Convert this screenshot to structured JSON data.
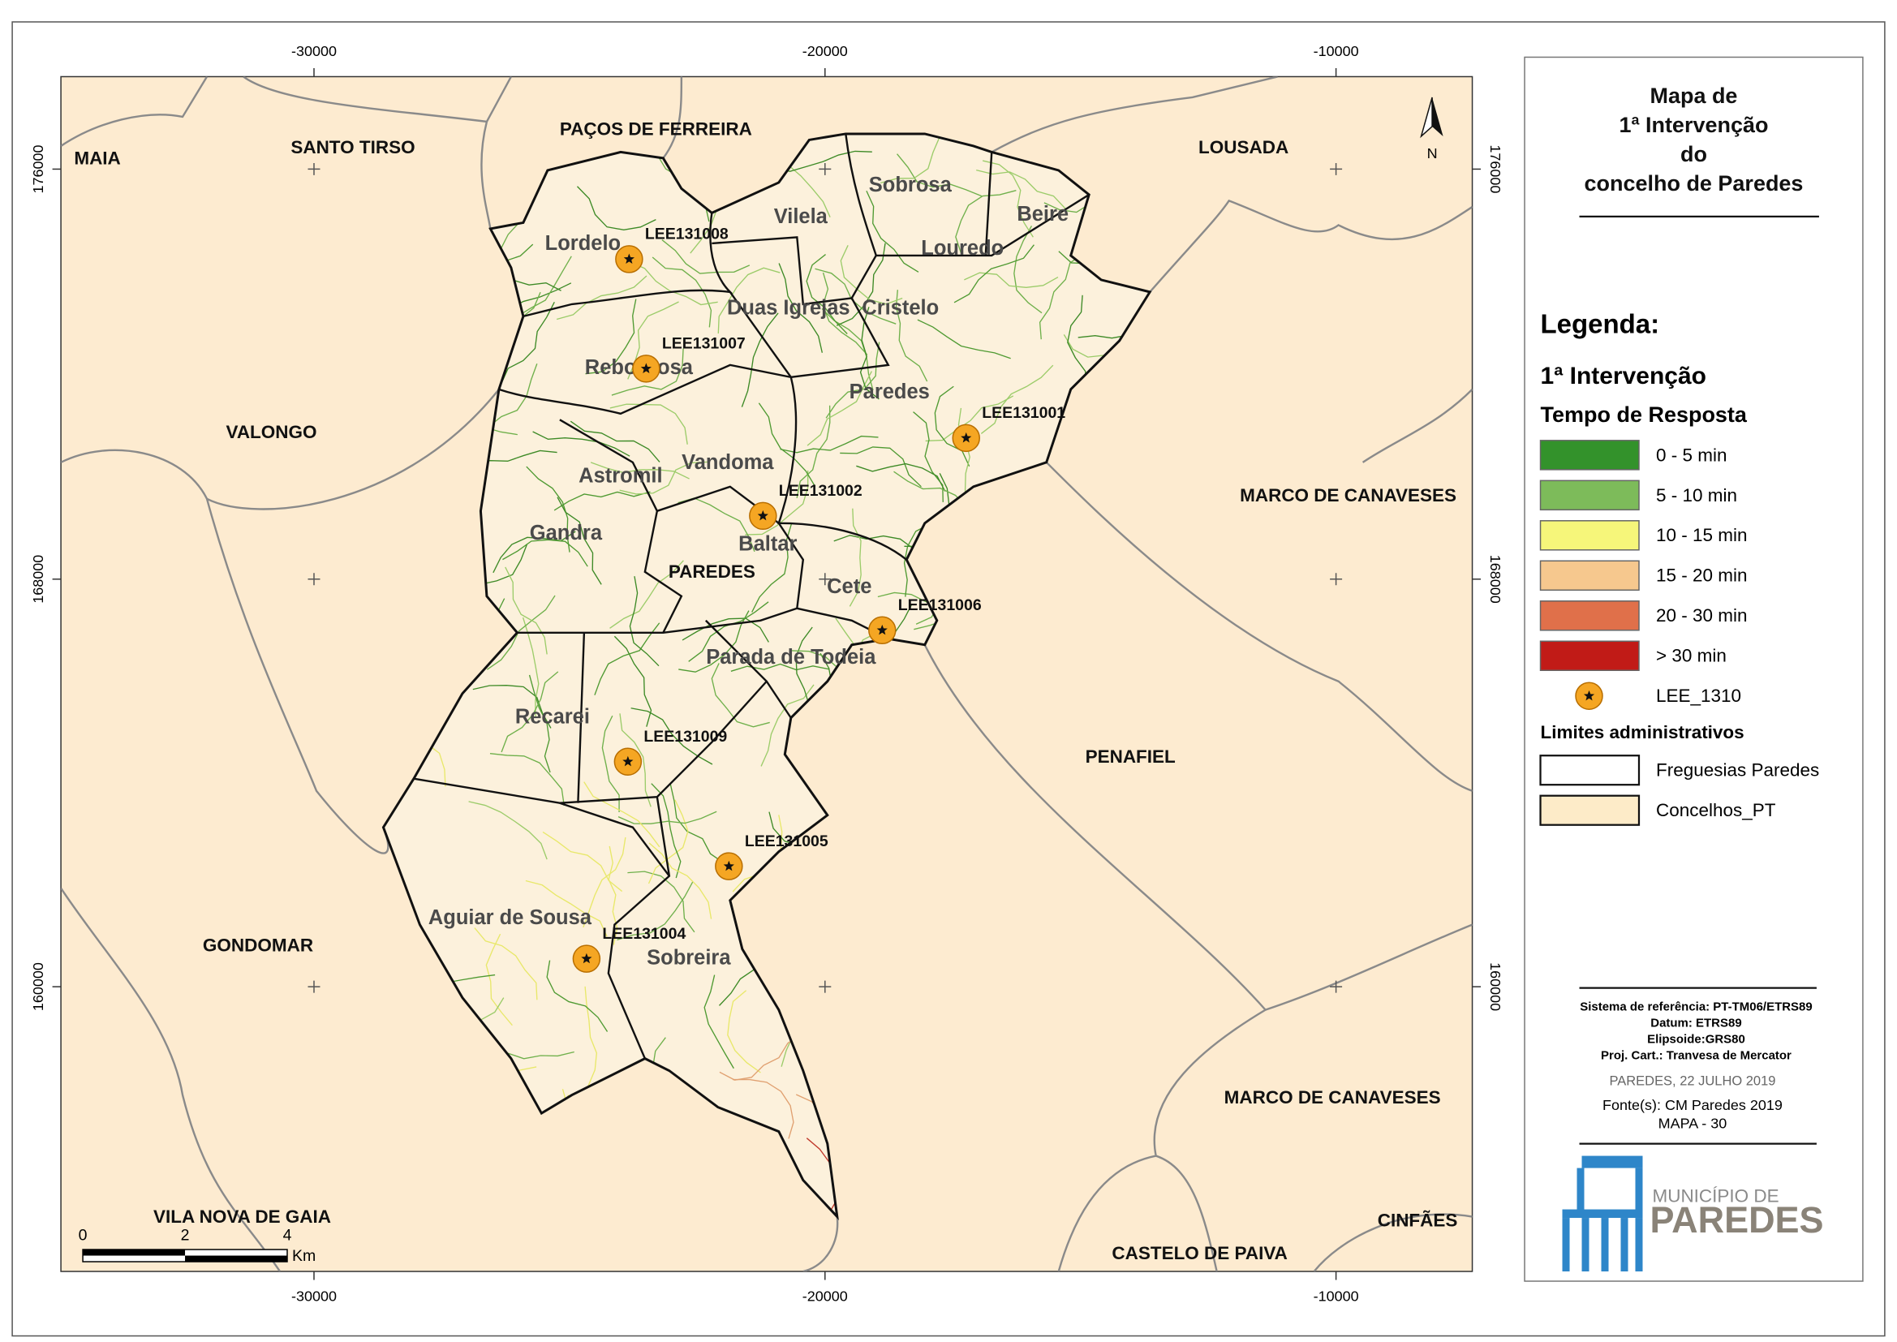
{
  "title_lines": [
    "Mapa de",
    "1ª Intervenção",
    "do",
    "concelho de Paredes"
  ],
  "grid": {
    "x_ticks": [
      -30000,
      -20000,
      -10000
    ],
    "y_ticks": [
      176000,
      168000,
      160000
    ]
  },
  "municipalities": [
    "MAIA",
    "SANTO TIRSO",
    "PAÇOS DE FERREIRA",
    "LOUSADA",
    "VALONGO",
    "MARCO DE CANAVESES",
    "PENAFIEL",
    "GONDOMAR",
    "MARCO DE CANAVESES",
    "VILA NOVA DE GAIA",
    "CINFÃES",
    "CASTELO DE PAIVA",
    "PAREDES"
  ],
  "parishes": [
    "Sobrosa",
    "Vilela",
    "Beire",
    "Lordelo",
    "Louredo",
    "Duas Igrejas",
    "Cristelo",
    "Rebordosa",
    "Paredes",
    "Astromil",
    "Vandoma",
    "Gandra",
    "Baltar",
    "Cete",
    "Parada de Todeia",
    "Recarei",
    "Aguiar de Sousa",
    "Sobreira"
  ],
  "stations": [
    "LEE131008",
    "LEE131007",
    "LEE131001",
    "LEE131002",
    "LEE131006",
    "LEE131009",
    "LEE131005",
    "LEE131004"
  ],
  "north": "N",
  "scale_bar": {
    "ticks": [
      0,
      2,
      4
    ],
    "unit": "Km"
  },
  "legend": {
    "heading": "Legenda:",
    "section": "1ª Intervenção",
    "subsection": "Tempo de Resposta",
    "classes": [
      {
        "label": "0 - 5 min",
        "color": "#33922b"
      },
      {
        "label": "5 - 10 min",
        "color": "#7dbb5a"
      },
      {
        "label": "10 - 15 min",
        "color": "#f6f67a"
      },
      {
        "label": "15 - 20 min",
        "color": "#f6c88e"
      },
      {
        "label": "20 - 30 min",
        "color": "#e0704a"
      },
      {
        "label": "> 30 min",
        "color": "#c11b17"
      }
    ],
    "station_label": "LEE_1310",
    "admin_heading": "Limites administrativos",
    "admin": [
      {
        "label": "Freguesias Paredes",
        "color": "#ffffff"
      },
      {
        "label": "Concelhos_PT",
        "color": "#fdebc8"
      }
    ]
  },
  "metadata": {
    "lines": [
      "Sistema de referência: PT-TM06/ETRS89",
      "Datum: ETRS89",
      "Elipsoide:GRS80",
      "Proj. Cart.: Tranvesa de Mercator"
    ],
    "date": "PAREDES, 22 JULHO 2019",
    "source": "Fonte(s): CM Paredes 2019",
    "map_no": "MAPA - 30"
  },
  "logo": {
    "top": "MUNICÍPIO DE",
    "bottom": "PAREDES"
  }
}
